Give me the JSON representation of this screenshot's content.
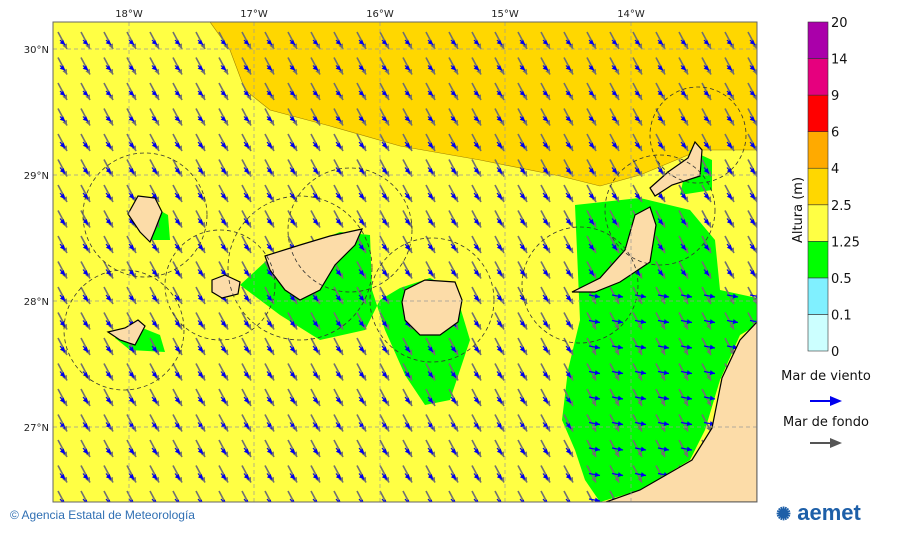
{
  "map": {
    "lon_labels": [
      "18°W",
      "17°W",
      "16°W",
      "15°W",
      "14°W"
    ],
    "lat_labels": [
      "30°N",
      "29°N",
      "28°N",
      "27°N"
    ],
    "colors": {
      "sea_yellow": "#ffff44",
      "orange": "#ffd700",
      "green": "#00ff00",
      "land": "#fcdca8",
      "wind_arrow": "#0000ee",
      "swell_arrow": "#707070"
    }
  },
  "legend": {
    "title": "Altura (m)",
    "levels": [
      "0",
      "0.1",
      "0.5",
      "1.25",
      "2.5",
      "4",
      "6",
      "9",
      "14",
      "20"
    ],
    "colors": [
      "#ccffff",
      "#80f0ff",
      "#00ff00",
      "#ffff44",
      "#ffd700",
      "#ffaa00",
      "#ff0000",
      "#e6007e",
      "#aa00aa"
    ],
    "wind_sea_label": "Mar de viento",
    "swell_label": "Mar de fondo"
  },
  "footer": {
    "copyright": "© Agencia Estatal de Meteorología",
    "logo": "aemet"
  }
}
